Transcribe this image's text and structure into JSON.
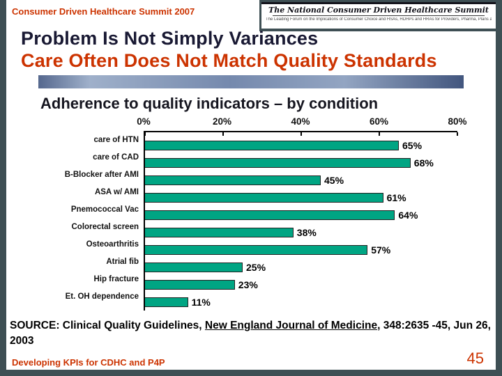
{
  "colors": {
    "accent": "#cc3300",
    "frame": "#3e4f54",
    "title_dark": "#191933"
  },
  "header": {
    "summit_label": "Consumer Driven Healthcare Summit 2007",
    "logo": {
      "title": "The National Consumer Driven Healthcare Summit",
      "tagline": "The Leading Forum on the Implications of Consumer Choice and HSAs, HDHPs and HRAs for Providers, Pharma, Plans and Employers"
    }
  },
  "title": {
    "line1": "Problem Is Not Simply Variances",
    "line2": "Care Often Does Not Match Quality Standards"
  },
  "chart_data": {
    "type": "bar",
    "orientation": "horizontal",
    "title": "Adherence to quality indicators – by condition",
    "categories": [
      "care of HTN",
      "care of CAD",
      "B-Blocker after AMI",
      "ASA w/ AMI",
      "Pnemococcal Vac",
      "Colorectal screen",
      "Osteoarthritis",
      "Atrial fib",
      "Hip fracture",
      "Et. OH dependence"
    ],
    "values": [
      65,
      68,
      45,
      61,
      64,
      38,
      57,
      25,
      23,
      11
    ],
    "value_labels": [
      "65%",
      "68%",
      "45%",
      "61%",
      "64%",
      "38%",
      "57%",
      "25%",
      "23%",
      "11%"
    ],
    "x_ticks": [
      "0%",
      "20%",
      "40%",
      "60%",
      "80%"
    ],
    "xlim": [
      0,
      80
    ],
    "bar_color": "#00a583",
    "grid": false,
    "legend": false
  },
  "source": {
    "prefix": "SOURCE:  Clinical Quality Guidelines, ",
    "journal": "New England Journal of Medicine",
    "suffix": ", 348:2635 -45, Jun 26, 2003"
  },
  "footer": {
    "left": "Developing KPIs for CDHC and P4P",
    "page": "45"
  }
}
